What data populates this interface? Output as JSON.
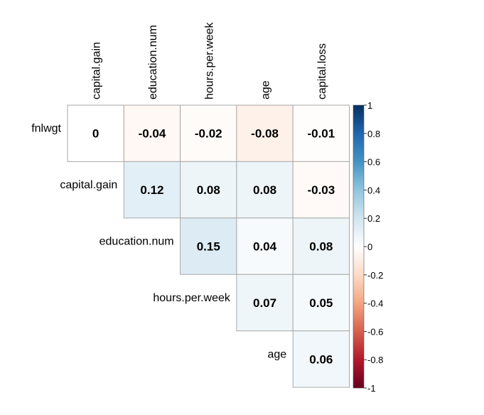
{
  "chart_data": {
    "type": "heatmap",
    "layout": "upper-triangle correlation matrix",
    "row_labels": [
      "fnlwgt",
      "capital.gain",
      "education.num",
      "hours.per.week",
      "age"
    ],
    "column_labels": [
      "capital.gain",
      "education.num",
      "hours.per.week",
      "age",
      "capital.loss"
    ],
    "cells": [
      {
        "row": "fnlwgt",
        "col": "capital.gain",
        "value": 0,
        "label": "0"
      },
      {
        "row": "fnlwgt",
        "col": "education.num",
        "value": -0.04,
        "label": "-0.04"
      },
      {
        "row": "fnlwgt",
        "col": "hours.per.week",
        "value": -0.02,
        "label": "-0.02"
      },
      {
        "row": "fnlwgt",
        "col": "age",
        "value": -0.08,
        "label": "-0.08"
      },
      {
        "row": "fnlwgt",
        "col": "capital.loss",
        "value": -0.01,
        "label": "-0.01"
      },
      {
        "row": "capital.gain",
        "col": "education.num",
        "value": 0.12,
        "label": "0.12"
      },
      {
        "row": "capital.gain",
        "col": "hours.per.week",
        "value": 0.08,
        "label": "0.08"
      },
      {
        "row": "capital.gain",
        "col": "age",
        "value": 0.08,
        "label": "0.08"
      },
      {
        "row": "capital.gain",
        "col": "capital.loss",
        "value": -0.03,
        "label": "-0.03"
      },
      {
        "row": "education.num",
        "col": "hours.per.week",
        "value": 0.15,
        "label": "0.15"
      },
      {
        "row": "education.num",
        "col": "age",
        "value": 0.04,
        "label": "0.04"
      },
      {
        "row": "education.num",
        "col": "capital.loss",
        "value": 0.08,
        "label": "0.08"
      },
      {
        "row": "hours.per.week",
        "col": "age",
        "value": 0.07,
        "label": "0.07"
      },
      {
        "row": "hours.per.week",
        "col": "capital.loss",
        "value": 0.05,
        "label": "0.05"
      },
      {
        "row": "age",
        "col": "capital.loss",
        "value": 0.06,
        "label": "0.06"
      }
    ],
    "colorbar": {
      "range": [
        -1,
        1
      ],
      "ticks": [
        "1",
        "0.8",
        "0.6",
        "0.4",
        "0.2",
        "0",
        "-0.2",
        "-0.4",
        "-0.6",
        "-0.8",
        "-1"
      ],
      "colors": {
        "low": "#67001f",
        "mid": "#ffffff",
        "high": "#053061"
      }
    },
    "grid": true,
    "legend_position": "right"
  }
}
